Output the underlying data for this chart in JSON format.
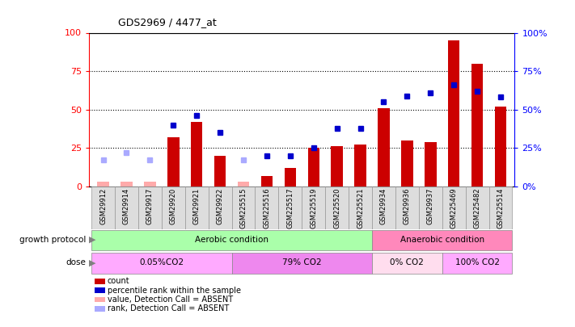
{
  "title": "GDS2969 / 4477_at",
  "samples": [
    "GSM29912",
    "GSM29914",
    "GSM29917",
    "GSM29920",
    "GSM29921",
    "GSM29922",
    "GSM225515",
    "GSM225516",
    "GSM225517",
    "GSM225519",
    "GSM225520",
    "GSM225521",
    "GSM29934",
    "GSM29936",
    "GSM29937",
    "GSM225469",
    "GSM225482",
    "GSM225514"
  ],
  "count_values": [
    0,
    0,
    0,
    32,
    42,
    20,
    0,
    7,
    12,
    25,
    26,
    27,
    51,
    30,
    29,
    95,
    80,
    52
  ],
  "rank_values": [
    17,
    22,
    17,
    40,
    46,
    35,
    17,
    20,
    20,
    25,
    38,
    38,
    55,
    59,
    61,
    66,
    62,
    58
  ],
  "count_absent": [
    true,
    true,
    true,
    false,
    false,
    false,
    true,
    false,
    false,
    false,
    false,
    false,
    false,
    false,
    false,
    false,
    false,
    false
  ],
  "rank_absent": [
    true,
    true,
    true,
    false,
    false,
    false,
    true,
    false,
    false,
    false,
    false,
    false,
    false,
    false,
    false,
    false,
    false,
    false
  ],
  "bar_color_present": "#cc0000",
  "bar_color_absent": "#ffaaaa",
  "dot_color_present": "#0000cc",
  "dot_color_absent": "#aaaaff",
  "ylim_left": [
    0,
    100
  ],
  "ylim_right": [
    0,
    100
  ],
  "yticks_left": [
    0,
    25,
    50,
    75,
    100
  ],
  "yticks_right": [
    0,
    25,
    50,
    75,
    100
  ],
  "growth_protocol_groups": [
    {
      "label": "Aerobic condition",
      "start": 0,
      "end": 11,
      "color": "#aaffaa"
    },
    {
      "label": "Anaerobic condition",
      "start": 12,
      "end": 17,
      "color": "#ff88bb"
    }
  ],
  "dose_groups": [
    {
      "label": "0.05%CO2",
      "start": 0,
      "end": 5,
      "color": "#ffaaff"
    },
    {
      "label": "79% CO2",
      "start": 6,
      "end": 11,
      "color": "#ee88ee"
    },
    {
      "label": "0% CO2",
      "start": 12,
      "end": 14,
      "color": "#ffddee"
    },
    {
      "label": "100% CO2",
      "start": 15,
      "end": 17,
      "color": "#ffaaff"
    }
  ],
  "legend_items": [
    {
      "label": "count",
      "color": "#cc0000"
    },
    {
      "label": "percentile rank within the sample",
      "color": "#0000cc"
    },
    {
      "label": "value, Detection Call = ABSENT",
      "color": "#ffaaaa"
    },
    {
      "label": "rank, Detection Call = ABSENT",
      "color": "#aaaaff"
    }
  ]
}
